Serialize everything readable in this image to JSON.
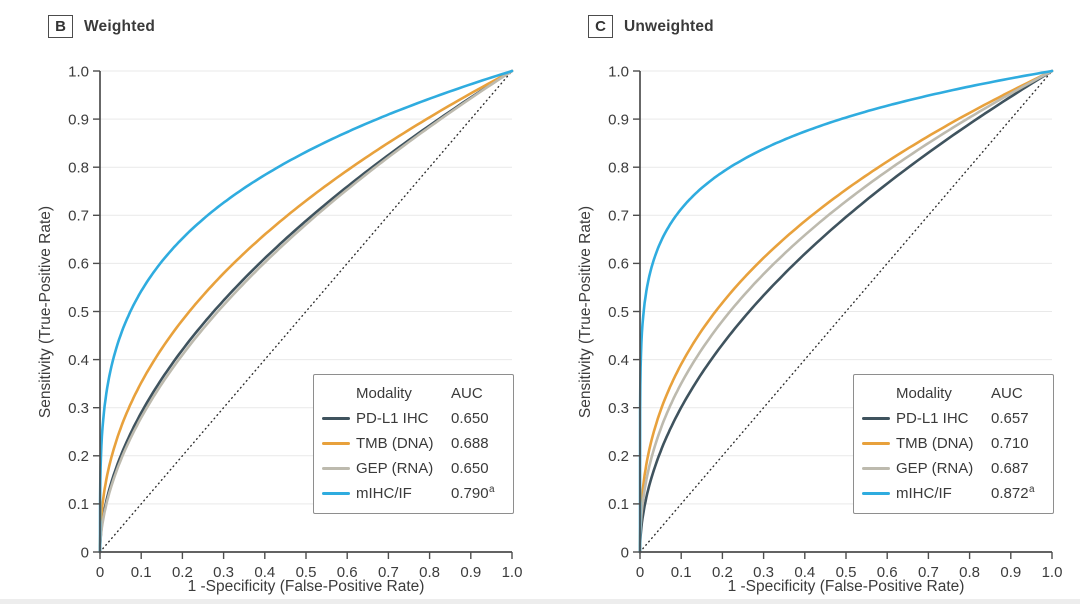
{
  "figure": {
    "background": "#ffffff",
    "bottom_strip_color": "#ededed"
  },
  "chart_data": [
    {
      "type": "line",
      "subtype": "roc-curves",
      "panel_letter": "B",
      "panel_title": "Weighted",
      "xlabel": "1 -Specificity (False-Positive Rate)",
      "ylabel": "Sensitivity (True-Positive Rate)",
      "xlim": [
        0,
        1
      ],
      "ylim": [
        0,
        1
      ],
      "x_ticks": [
        "0",
        "0.1",
        "0.2",
        "0.3",
        "0.4",
        "0.5",
        "0.6",
        "0.7",
        "0.8",
        "0.9",
        "1.0"
      ],
      "y_ticks": [
        "0",
        "0.1",
        "0.2",
        "0.3",
        "0.4",
        "0.5",
        "0.6",
        "0.7",
        "0.8",
        "0.9",
        "1.0"
      ],
      "grid": "horizontal-only",
      "grid_color": "#e9e9e9",
      "axis_color": "#4d4d4d",
      "text_color": "#3c3c3c",
      "reference_line": {
        "style": "dotted-diagonal",
        "color": "#2e2e2e"
      },
      "curve_model": "y = x^(1/AUC - 1)",
      "legend": {
        "header_modality": "Modality",
        "header_auc": "AUC",
        "position": "lower-right"
      },
      "series": [
        {
          "name": "PD-L1 IHC",
          "auc": 0.65,
          "auc_label": "0.650",
          "auc_superscript": "",
          "color": "#3F535E",
          "sampled_x": [
            0,
            0.1,
            0.2,
            0.3,
            0.4,
            0.5,
            0.6,
            0.7,
            0.8,
            0.9,
            1.0
          ],
          "sampled_y": [
            0,
            0.29,
            0.42,
            0.52,
            0.61,
            0.69,
            0.76,
            0.83,
            0.89,
            0.94,
            1.0
          ]
        },
        {
          "name": "TMB (DNA)",
          "auc": 0.688,
          "auc_label": "0.688",
          "auc_superscript": "",
          "color": "#E8A13C",
          "sampled_x": [
            0,
            0.1,
            0.2,
            0.3,
            0.4,
            0.5,
            0.6,
            0.7,
            0.8,
            0.9,
            1.0
          ],
          "sampled_y": [
            0,
            0.35,
            0.48,
            0.58,
            0.66,
            0.73,
            0.79,
            0.85,
            0.9,
            0.95,
            1.0
          ]
        },
        {
          "name": "GEP (RNA)",
          "auc": 0.65,
          "auc_label": "0.650",
          "auc_superscript": "",
          "color": "#BDBAAE",
          "sampled_x": [
            0,
            0.1,
            0.2,
            0.3,
            0.4,
            0.5,
            0.6,
            0.7,
            0.8,
            0.9,
            1.0
          ],
          "sampled_y": [
            0,
            0.29,
            0.42,
            0.52,
            0.61,
            0.69,
            0.76,
            0.83,
            0.89,
            0.94,
            1.0
          ]
        },
        {
          "name": "mIHC/IF",
          "auc": 0.79,
          "auc_label": "0.790",
          "auc_superscript": "a",
          "color": "#2FACDF",
          "sampled_x": [
            0,
            0.1,
            0.2,
            0.3,
            0.4,
            0.5,
            0.6,
            0.7,
            0.8,
            0.9,
            1.0
          ],
          "sampled_y": [
            0,
            0.54,
            0.65,
            0.73,
            0.78,
            0.83,
            0.87,
            0.91,
            0.94,
            0.97,
            1.0
          ]
        }
      ]
    },
    {
      "type": "line",
      "subtype": "roc-curves",
      "panel_letter": "C",
      "panel_title": "Unweighted",
      "xlabel": "1 -Specificity (False-Positive Rate)",
      "ylabel": "Sensitivity (True-Positive Rate)",
      "xlim": [
        0,
        1
      ],
      "ylim": [
        0,
        1
      ],
      "x_ticks": [
        "0",
        "0.1",
        "0.2",
        "0.3",
        "0.4",
        "0.5",
        "0.6",
        "0.7",
        "0.8",
        "0.9",
        "1.0"
      ],
      "y_ticks": [
        "0",
        "0.1",
        "0.2",
        "0.3",
        "0.4",
        "0.5",
        "0.6",
        "0.7",
        "0.8",
        "0.9",
        "1.0"
      ],
      "grid": "horizontal-only",
      "grid_color": "#e9e9e9",
      "axis_color": "#4d4d4d",
      "text_color": "#3c3c3c",
      "reference_line": {
        "style": "dotted-diagonal",
        "color": "#2e2e2e"
      },
      "curve_model": "y = x^(1/AUC - 1)",
      "legend": {
        "header_modality": "Modality",
        "header_auc": "AUC",
        "position": "lower-right"
      },
      "series": [
        {
          "name": "PD-L1 IHC",
          "auc": 0.657,
          "auc_label": "0.657",
          "auc_superscript": "",
          "color": "#3F535E",
          "sampled_x": [
            0,
            0.1,
            0.2,
            0.3,
            0.4,
            0.5,
            0.6,
            0.7,
            0.8,
            0.9,
            1.0
          ],
          "sampled_y": [
            0,
            0.3,
            0.43,
            0.53,
            0.62,
            0.7,
            0.77,
            0.83,
            0.89,
            0.95,
            1.0
          ]
        },
        {
          "name": "TMB (DNA)",
          "auc": 0.71,
          "auc_label": "0.710",
          "auc_superscript": "",
          "color": "#E8A13C",
          "sampled_x": [
            0,
            0.1,
            0.2,
            0.3,
            0.4,
            0.5,
            0.6,
            0.7,
            0.8,
            0.9,
            1.0
          ],
          "sampled_y": [
            0,
            0.39,
            0.52,
            0.61,
            0.69,
            0.75,
            0.81,
            0.86,
            0.91,
            0.96,
            1.0
          ]
        },
        {
          "name": "GEP (RNA)",
          "auc": 0.687,
          "auc_label": "0.687",
          "auc_superscript": "",
          "color": "#BDBAAE",
          "sampled_x": [
            0,
            0.1,
            0.2,
            0.3,
            0.4,
            0.5,
            0.6,
            0.7,
            0.8,
            0.9,
            1.0
          ],
          "sampled_y": [
            0,
            0.35,
            0.48,
            0.58,
            0.66,
            0.73,
            0.79,
            0.85,
            0.9,
            0.95,
            1.0
          ]
        },
        {
          "name": "mIHC/IF",
          "auc": 0.872,
          "auc_label": "0.872",
          "auc_superscript": "a",
          "color": "#2FACDF",
          "sampled_x": [
            0,
            0.1,
            0.2,
            0.3,
            0.4,
            0.5,
            0.6,
            0.7,
            0.8,
            0.9,
            1.0
          ],
          "sampled_y": [
            0,
            0.71,
            0.79,
            0.84,
            0.87,
            0.9,
            0.93,
            0.95,
            0.97,
            0.98,
            1.0
          ]
        }
      ]
    }
  ]
}
